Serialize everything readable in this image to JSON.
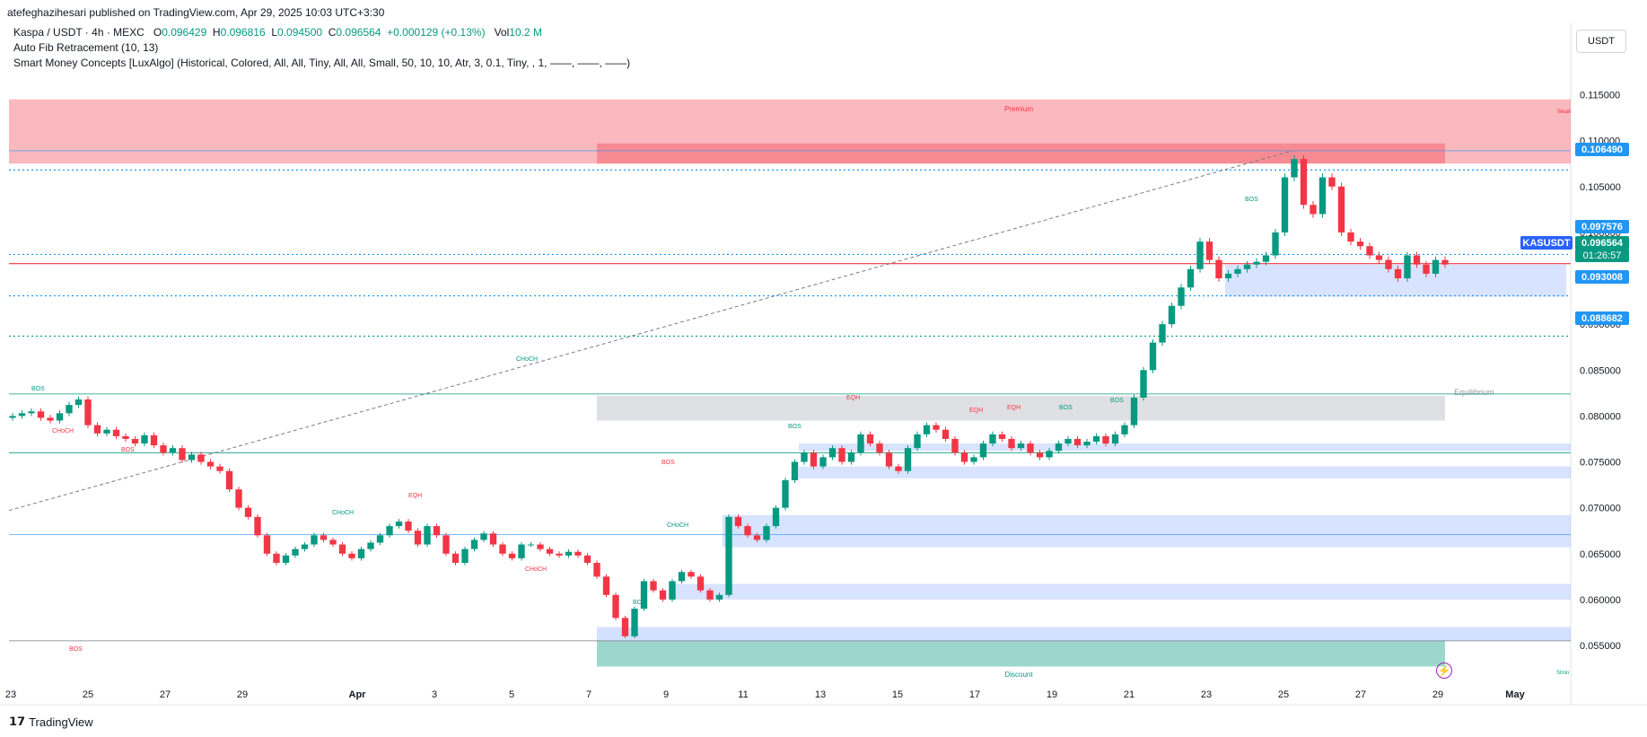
{
  "publisher_line": "atefeghazihesari published on TradingView.com, Apr 29, 2025 10:03 UTC+3:30",
  "legend": {
    "symbol": "Kaspa / USDT · 4h · MEXC",
    "o_label": "O",
    "o_value": "0.096429",
    "h_label": "H",
    "h_value": "0.096816",
    "l_label": "L",
    "l_value": "0.094500",
    "c_label": "C",
    "c_value": "0.096564",
    "change": "+0.000129 (+0.13%)",
    "vol_label": "Vol",
    "vol_value": "10.2 M",
    "indicator1": "Auto Fib Retracement (10, 13)",
    "indicator2": "Smart Money Concepts [LuxAlgo] (Historical, Colored, All, All, Tiny, All, All, Small, 50, 10, 10, Atr, 3, 0.1, Tiny, , 1, ——, ——, ——)"
  },
  "currency_button": "USDT",
  "price_tags": {
    "p1": "0.106490",
    "p2": "0.097576",
    "p3": "0.096564",
    "p3_timer": "01:26:57",
    "p4": "0.093008",
    "p5": "0.088682",
    "symbol": "KASUSDT"
  },
  "footer": "TradingView",
  "colors": {
    "up": "#089981",
    "down": "#f23645",
    "premium": "#f23645",
    "discount": "#089981",
    "ob_blue": "#2962ff",
    "fib_line": "#2196f3"
  },
  "chart_data": {
    "type": "candlestick",
    "timeframe": "4h",
    "ylim": [
      0.0505,
      0.1175
    ],
    "y_ticks": [
      "0.115000",
      "0.110000",
      "0.105000",
      "0.100000",
      "0.095000",
      "0.090000",
      "0.085000",
      "0.080000",
      "0.075000",
      "0.070000",
      "0.065000",
      "0.060000",
      "0.055000"
    ],
    "x_ticks": [
      "23",
      "25",
      "27",
      "29",
      "Apr",
      "3",
      "5",
      "7",
      "9",
      "11",
      "13",
      "15",
      "17",
      "19",
      "21",
      "23",
      "25",
      "27",
      "29",
      "May"
    ],
    "zones": [
      {
        "label": "Premium",
        "from": 0.1075,
        "to": 0.1145
      },
      {
        "label": "Equilibrium",
        "from": 0.0795,
        "to": 0.0822
      },
      {
        "label": "Discount",
        "from": 0.0527,
        "to": 0.0555
      }
    ],
    "annotations": [
      "BOS",
      "CHoCH",
      "BOS",
      "BOS",
      "CHoCH",
      "CHoCH",
      "EQH",
      "CHoCH",
      "BOS",
      "BOS",
      "CHoCH",
      "BOS",
      "EQH",
      "EQH",
      "EQH",
      "BOS",
      "BOS",
      "BOS",
      "Premium",
      "Equilibrium",
      "Discount",
      "Weak",
      "Stron"
    ],
    "close_series": [
      0.08,
      0.0803,
      0.0805,
      0.0798,
      0.0795,
      0.0803,
      0.0812,
      0.0818,
      0.079,
      0.0781,
      0.0785,
      0.0778,
      0.0775,
      0.077,
      0.0779,
      0.0768,
      0.076,
      0.0765,
      0.0752,
      0.0758,
      0.075,
      0.0745,
      0.074,
      0.072,
      0.07,
      0.069,
      0.067,
      0.065,
      0.064,
      0.0648,
      0.0655,
      0.066,
      0.067,
      0.0665,
      0.066,
      0.065,
      0.0645,
      0.0655,
      0.0662,
      0.067,
      0.068,
      0.0685,
      0.0675,
      0.066,
      0.068,
      0.067,
      0.065,
      0.064,
      0.0655,
      0.0665,
      0.0672,
      0.066,
      0.065,
      0.0645,
      0.066,
      0.066,
      0.0655,
      0.065,
      0.0648,
      0.0652,
      0.0648,
      0.064,
      0.0625,
      0.0605,
      0.058,
      0.056,
      0.059,
      0.062,
      0.061,
      0.06,
      0.062,
      0.063,
      0.0625,
      0.061,
      0.06,
      0.0605,
      0.069,
      0.068,
      0.067,
      0.0665,
      0.068,
      0.07,
      0.073,
      0.075,
      0.076,
      0.0745,
      0.0755,
      0.0765,
      0.075,
      0.076,
      0.078,
      0.077,
      0.076,
      0.0745,
      0.074,
      0.0765,
      0.078,
      0.079,
      0.0785,
      0.0775,
      0.076,
      0.075,
      0.0755,
      0.077,
      0.078,
      0.0775,
      0.0765,
      0.077,
      0.076,
      0.0755,
      0.0762,
      0.077,
      0.0775,
      0.0768,
      0.0772,
      0.0778,
      0.077,
      0.078,
      0.079,
      0.082,
      0.085,
      0.088,
      0.09,
      0.092,
      0.094,
      0.096,
      0.099,
      0.097,
      0.095,
      0.0955,
      0.096,
      0.0965,
      0.0968,
      0.0975,
      0.1,
      0.106,
      0.108,
      0.103,
      0.102,
      0.106,
      0.105,
      0.1,
      0.099,
      0.0985,
      0.0975,
      0.097,
      0.096,
      0.095,
      0.0975,
      0.0965,
      0.0955,
      0.097,
      0.0965
    ]
  }
}
